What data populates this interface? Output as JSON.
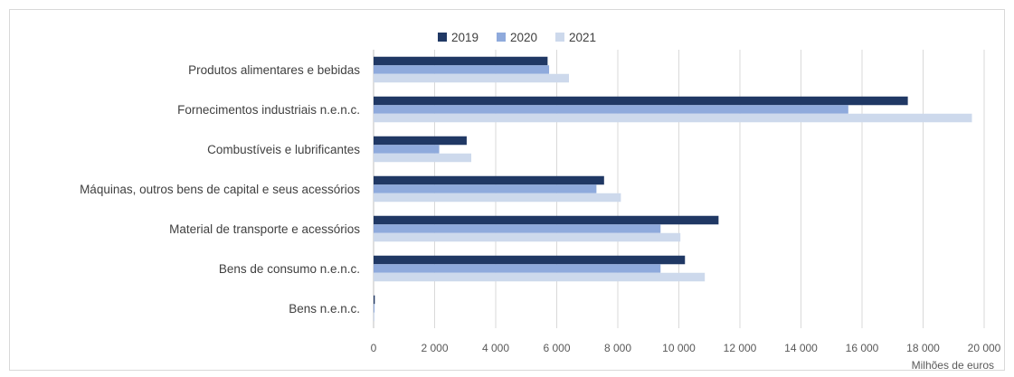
{
  "chart_data": {
    "type": "bar",
    "orientation": "horizontal",
    "categories": [
      "Produtos alimentares e bebidas",
      "Fornecimentos industriais n.e.n.c.",
      "Combustíveis e lubrificantes",
      "Máquinas, outros bens de capital e seus acessórios",
      "Material de transporte e acessórios",
      "Bens de consumo n.e.n.c.",
      "Bens n.e.n.c."
    ],
    "series": [
      {
        "name": "2019",
        "color": "#203864",
        "values": [
          5700,
          17500,
          3050,
          7550,
          11300,
          10200,
          40
        ]
      },
      {
        "name": "2020",
        "color": "#8faadc",
        "values": [
          5750,
          15550,
          2150,
          7300,
          9400,
          9400,
          30
        ]
      },
      {
        "name": "2021",
        "color": "#cdd9ec",
        "values": [
          6400,
          19600,
          3200,
          8100,
          10050,
          10850,
          30
        ]
      }
    ],
    "xlim": [
      0,
      20000
    ],
    "xticks": [
      0,
      2000,
      4000,
      6000,
      8000,
      10000,
      12000,
      14000,
      16000,
      18000,
      20000
    ],
    "xtick_labels": [
      "0",
      "2 000",
      "4 000",
      "6 000",
      "8 000",
      "10 000",
      "12 000",
      "14 000",
      "16 000",
      "18 000",
      "20 000"
    ],
    "unit_label": "Milhões de euros",
    "legend_position": "top",
    "grid": "vertical"
  }
}
